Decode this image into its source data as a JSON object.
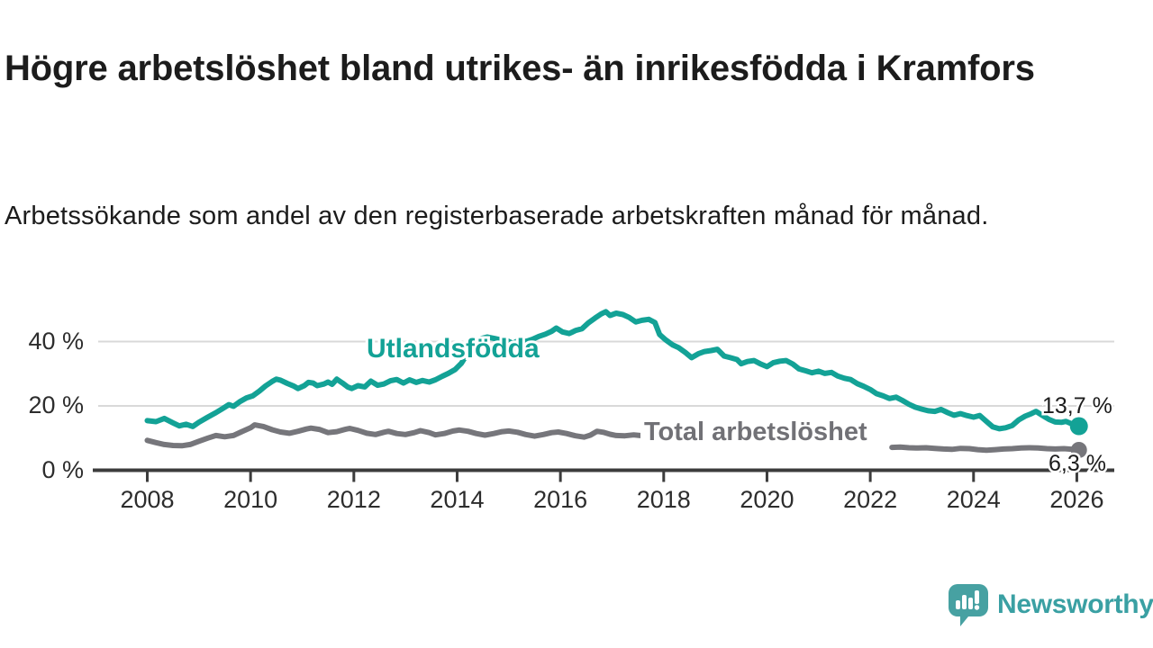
{
  "header": {
    "title": "Högre arbetslöshet bland utrikes- än inrikesfödda i Kramfors",
    "subtitle": "Arbetssökande som andel av den registerbaserade arbetskraften månad för månad."
  },
  "branding": {
    "logo_text": "Newsworthy",
    "logo_icon": "speech-bubble-bar-chart-icon",
    "logo_icon_color": "#47a1a2",
    "logo_text_color": "#3aa0a3"
  },
  "chart_data": {
    "type": "line",
    "title": "Högre arbetslöshet bland utrikes- än inrikesfödda i Kramfors",
    "subtitle": "Arbetssökande som andel av den registerbaserade arbetskraften månad för månad.",
    "unit": "%",
    "grid_color": "#d9d9d9",
    "axis_color": "#3c3c3c",
    "x_axis": {
      "range_years": [
        2007.95,
        2026.75
      ],
      "ticks": [
        {
          "label": "2008",
          "value": 2008
        },
        {
          "label": "2010",
          "value": 2010
        },
        {
          "label": "2012",
          "value": 2012
        },
        {
          "label": "2014",
          "value": 2014
        },
        {
          "label": "2016",
          "value": 2016
        },
        {
          "label": "2018",
          "value": 2018
        },
        {
          "label": "2020",
          "value": 2020
        },
        {
          "label": "2022",
          "value": 2022
        },
        {
          "label": "2024",
          "value": 2024
        },
        {
          "label": "2026",
          "value": 2026
        }
      ]
    },
    "y_axis": {
      "range": [
        0,
        52
      ],
      "gridlines": true,
      "ticks": [
        {
          "label": "0 %",
          "value": 0
        },
        {
          "label": "20 %",
          "value": 20
        },
        {
          "label": "40 %",
          "value": 40
        }
      ]
    },
    "series": [
      {
        "name": "Utlandsfödda",
        "color": "#13a296",
        "line_width": 6,
        "end_label": "13,7 %",
        "end_value": 13.7,
        "end_dot_radius": 10,
        "segments": [
          [
            [
              2008.0,
              15.4
            ],
            [
              2008.17,
              15.1
            ],
            [
              2008.33,
              16.1
            ],
            [
              2008.5,
              14.7
            ],
            [
              2008.62,
              13.8
            ],
            [
              2008.75,
              14.3
            ],
            [
              2008.88,
              13.6
            ],
            [
              2009.0,
              14.9
            ],
            [
              2009.17,
              16.5
            ],
            [
              2009.33,
              17.9
            ],
            [
              2009.46,
              19.2
            ],
            [
              2009.58,
              20.4
            ],
            [
              2009.67,
              19.9
            ],
            [
              2009.79,
              21.3
            ],
            [
              2009.92,
              22.5
            ],
            [
              2010.04,
              23.1
            ],
            [
              2010.17,
              24.6
            ],
            [
              2010.29,
              26.2
            ],
            [
              2010.42,
              27.6
            ],
            [
              2010.5,
              28.3
            ],
            [
              2010.58,
              28.0
            ],
            [
              2010.71,
              27.0
            ],
            [
              2010.83,
              26.2
            ],
            [
              2010.92,
              25.4
            ],
            [
              2011.04,
              26.3
            ],
            [
              2011.12,
              27.3
            ],
            [
              2011.21,
              27.1
            ],
            [
              2011.29,
              26.3
            ],
            [
              2011.42,
              26.8
            ],
            [
              2011.5,
              27.4
            ],
            [
              2011.58,
              26.7
            ],
            [
              2011.67,
              28.3
            ],
            [
              2011.79,
              27.0
            ],
            [
              2011.88,
              25.9
            ],
            [
              2011.96,
              25.4
            ],
            [
              2012.08,
              26.3
            ],
            [
              2012.21,
              25.9
            ],
            [
              2012.33,
              27.7
            ],
            [
              2012.46,
              26.4
            ],
            [
              2012.58,
              26.8
            ],
            [
              2012.71,
              27.8
            ],
            [
              2012.83,
              28.2
            ],
            [
              2012.96,
              27.1
            ],
            [
              2013.08,
              28.1
            ],
            [
              2013.21,
              27.3
            ],
            [
              2013.33,
              27.9
            ],
            [
              2013.46,
              27.4
            ],
            [
              2013.58,
              28.1
            ],
            [
              2013.71,
              29.2
            ],
            [
              2013.83,
              30.1
            ],
            [
              2013.96,
              31.3
            ],
            [
              2014.08,
              33.2
            ],
            [
              2014.21,
              36.5
            ],
            [
              2014.33,
              39.2
            ],
            [
              2014.46,
              40.9
            ],
            [
              2014.58,
              41.4
            ],
            [
              2014.71,
              41.0
            ],
            [
              2014.83,
              40.6
            ],
            [
              2014.96,
              40.3
            ],
            [
              2015.08,
              39.4
            ],
            [
              2015.21,
              40.5
            ],
            [
              2015.33,
              40.0
            ],
            [
              2015.46,
              40.7
            ],
            [
              2015.58,
              41.6
            ],
            [
              2015.71,
              42.3
            ],
            [
              2015.83,
              43.2
            ],
            [
              2015.92,
              44.2
            ],
            [
              2016.04,
              43.0
            ],
            [
              2016.17,
              42.5
            ],
            [
              2016.29,
              43.4
            ],
            [
              2016.42,
              44.0
            ],
            [
              2016.54,
              45.8
            ],
            [
              2016.67,
              47.3
            ],
            [
              2016.79,
              48.6
            ],
            [
              2016.88,
              49.3
            ],
            [
              2016.96,
              48.1
            ],
            [
              2017.08,
              48.8
            ],
            [
              2017.21,
              48.4
            ],
            [
              2017.33,
              47.5
            ],
            [
              2017.46,
              46.1
            ],
            [
              2017.58,
              46.6
            ],
            [
              2017.71,
              46.9
            ],
            [
              2017.83,
              45.9
            ],
            [
              2017.92,
              42.2
            ],
            [
              2018.04,
              40.5
            ],
            [
              2018.17,
              39.0
            ],
            [
              2018.29,
              38.1
            ],
            [
              2018.42,
              36.6
            ],
            [
              2018.54,
              35.0
            ],
            [
              2018.67,
              36.2
            ],
            [
              2018.79,
              36.9
            ],
            [
              2018.92,
              37.2
            ],
            [
              2019.04,
              37.6
            ],
            [
              2019.17,
              35.5
            ],
            [
              2019.29,
              35.0
            ],
            [
              2019.42,
              34.4
            ],
            [
              2019.5,
              33.1
            ],
            [
              2019.62,
              33.8
            ],
            [
              2019.75,
              34.1
            ],
            [
              2019.87,
              33.1
            ],
            [
              2020.0,
              32.2
            ],
            [
              2020.12,
              33.4
            ],
            [
              2020.25,
              33.9
            ],
            [
              2020.37,
              34.1
            ],
            [
              2020.5,
              33.0
            ],
            [
              2020.62,
              31.5
            ],
            [
              2020.75,
              30.9
            ],
            [
              2020.87,
              30.3
            ],
            [
              2021.0,
              30.8
            ],
            [
              2021.12,
              30.1
            ],
            [
              2021.25,
              30.4
            ],
            [
              2021.37,
              29.3
            ],
            [
              2021.5,
              28.6
            ],
            [
              2021.62,
              28.2
            ],
            [
              2021.75,
              26.9
            ],
            [
              2021.87,
              26.1
            ],
            [
              2022.0,
              25.1
            ],
            [
              2022.12,
              23.8
            ],
            [
              2022.25,
              23.1
            ],
            [
              2022.37,
              22.3
            ],
            [
              2022.5,
              22.7
            ],
            [
              2022.62,
              21.7
            ],
            [
              2022.75,
              20.5
            ],
            [
              2022.87,
              19.6
            ],
            [
              2023.0,
              19.0
            ],
            [
              2023.12,
              18.5
            ],
            [
              2023.25,
              18.3
            ],
            [
              2023.37,
              18.9
            ],
            [
              2023.5,
              17.9
            ],
            [
              2023.62,
              17.1
            ],
            [
              2023.75,
              17.6
            ],
            [
              2023.87,
              17.0
            ],
            [
              2024.0,
              16.5
            ],
            [
              2024.12,
              17.0
            ],
            [
              2024.25,
              15.2
            ],
            [
              2024.37,
              13.5
            ],
            [
              2024.5,
              12.9
            ],
            [
              2024.62,
              13.2
            ],
            [
              2024.75,
              13.9
            ],
            [
              2024.87,
              15.6
            ],
            [
              2025.0,
              16.8
            ],
            [
              2025.12,
              17.6
            ],
            [
              2025.21,
              18.3
            ],
            [
              2025.33,
              17.1
            ],
            [
              2025.46,
              15.8
            ],
            [
              2025.58,
              15.0
            ],
            [
              2025.71,
              14.9
            ],
            [
              2025.79,
              15.2
            ],
            [
              2025.92,
              14.3
            ],
            [
              2026.04,
              13.7
            ]
          ]
        ]
      },
      {
        "name": "Total arbetslöshet",
        "color": "#76767b",
        "line_width": 6,
        "end_label": "6,3 %",
        "end_value": 6.3,
        "end_dot_radius": 9,
        "segments": [
          [
            [
              2008.0,
              9.3
            ],
            [
              2008.17,
              8.6
            ],
            [
              2008.33,
              8.0
            ],
            [
              2008.5,
              7.7
            ],
            [
              2008.67,
              7.6
            ],
            [
              2008.83,
              8.0
            ],
            [
              2009.0,
              9.0
            ],
            [
              2009.17,
              10.0
            ],
            [
              2009.33,
              10.8
            ],
            [
              2009.5,
              10.4
            ],
            [
              2009.67,
              10.8
            ],
            [
              2009.83,
              12.0
            ],
            [
              2010.0,
              13.2
            ],
            [
              2010.08,
              14.1
            ],
            [
              2010.25,
              13.6
            ],
            [
              2010.42,
              12.6
            ],
            [
              2010.58,
              11.9
            ],
            [
              2010.75,
              11.5
            ],
            [
              2010.92,
              12.1
            ],
            [
              2011.08,
              12.8
            ],
            [
              2011.17,
              13.1
            ],
            [
              2011.33,
              12.7
            ],
            [
              2011.5,
              11.7
            ],
            [
              2011.67,
              12.0
            ],
            [
              2011.83,
              12.7
            ],
            [
              2011.92,
              13.0
            ],
            [
              2012.08,
              12.4
            ],
            [
              2012.25,
              11.5
            ],
            [
              2012.42,
              11.1
            ],
            [
              2012.58,
              11.8
            ],
            [
              2012.67,
              12.1
            ],
            [
              2012.83,
              11.4
            ],
            [
              2013.0,
              11.1
            ],
            [
              2013.17,
              11.7
            ],
            [
              2013.29,
              12.3
            ],
            [
              2013.46,
              11.7
            ],
            [
              2013.58,
              11.0
            ],
            [
              2013.75,
              11.4
            ],
            [
              2013.92,
              12.2
            ],
            [
              2014.04,
              12.5
            ],
            [
              2014.21,
              12.1
            ],
            [
              2014.37,
              11.4
            ],
            [
              2014.54,
              10.9
            ],
            [
              2014.71,
              11.4
            ],
            [
              2014.87,
              12.0
            ],
            [
              2015.0,
              12.2
            ],
            [
              2015.17,
              11.8
            ],
            [
              2015.33,
              11.1
            ],
            [
              2015.5,
              10.6
            ],
            [
              2015.67,
              11.1
            ],
            [
              2015.83,
              11.7
            ],
            [
              2015.96,
              11.9
            ],
            [
              2016.12,
              11.4
            ],
            [
              2016.29,
              10.7
            ],
            [
              2016.46,
              10.3
            ],
            [
              2016.58,
              10.9
            ],
            [
              2016.71,
              12.1
            ],
            [
              2016.83,
              11.8
            ],
            [
              2016.96,
              11.2
            ],
            [
              2017.08,
              10.8
            ],
            [
              2017.25,
              10.7
            ],
            [
              2017.42,
              11.0
            ],
            [
              2017.54,
              10.8
            ]
          ],
          [
            [
              2022.42,
              7.1
            ],
            [
              2022.58,
              7.2
            ],
            [
              2022.75,
              7.0
            ],
            [
              2022.92,
              6.9
            ],
            [
              2023.08,
              7.0
            ],
            [
              2023.25,
              6.8
            ],
            [
              2023.42,
              6.6
            ],
            [
              2023.58,
              6.5
            ],
            [
              2023.75,
              6.8
            ],
            [
              2023.92,
              6.7
            ],
            [
              2024.08,
              6.4
            ],
            [
              2024.25,
              6.2
            ],
            [
              2024.42,
              6.4
            ],
            [
              2024.58,
              6.6
            ],
            [
              2024.75,
              6.7
            ],
            [
              2024.92,
              6.9
            ],
            [
              2025.08,
              7.0
            ],
            [
              2025.25,
              6.9
            ],
            [
              2025.42,
              6.7
            ],
            [
              2025.58,
              6.6
            ],
            [
              2025.75,
              6.7
            ],
            [
              2025.92,
              6.5
            ],
            [
              2026.04,
              6.3
            ]
          ]
        ]
      }
    ]
  }
}
